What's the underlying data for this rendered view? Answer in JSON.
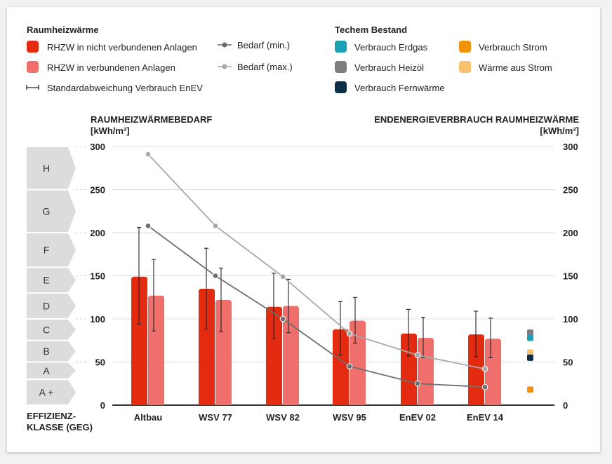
{
  "legend": {
    "group1_title": "Raumheizwärme",
    "group2_title": "Techem Bestand",
    "items1": [
      {
        "label": "RHZW in nicht verbundenen Anlagen",
        "color": "#e32b12"
      },
      {
        "label": "RHZW in verbundenen Anlagen",
        "color": "#ef6f6c"
      },
      {
        "label": "Standardabweichung Verbrauch EnEV",
        "color": "#222222"
      }
    ],
    "lines": [
      {
        "label": "Bedarf (min.)",
        "color": "#6e6e6e"
      },
      {
        "label": "Bedarf (max.)",
        "color": "#a8a8a8"
      }
    ],
    "items2": [
      {
        "label": "Verbrauch Erdgas",
        "color": "#1ba0b5"
      },
      {
        "label": "Verbrauch Heizöl",
        "color": "#7d7d7d"
      },
      {
        "label": "Verbrauch Fernwärme",
        "color": "#0d2e45"
      },
      {
        "label": "Verbrauch Strom",
        "color": "#f0930a"
      },
      {
        "label": "Wärme aus Strom",
        "color": "#f9c070"
      }
    ]
  },
  "chart_data": {
    "type": "bar",
    "ylabel_left": "RAUMHEIZWÄRMEBEDARF",
    "unit_left": "[kWh/m²]",
    "ylabel_right": "ENDENERGIEVERBRAUCH RAUMHEIZWÄRME",
    "unit_right": "[kWh/m²]",
    "xlabel": "EFFIZIENZ-",
    "xlabel2": "KLASSE (GEG)",
    "ylim": [
      0,
      300
    ],
    "yticks": [
      "0",
      "50",
      "100",
      "150",
      "200",
      "250",
      "300"
    ],
    "grid": true,
    "categories": [
      "Altbau",
      "WSV 77",
      "WSV 82",
      "WSV 95",
      "EnEV 02",
      "EnEV 14"
    ],
    "series": [
      {
        "name": "RHZW in nicht verbundenen Anlagen",
        "values": [
          149,
          135,
          114,
          88,
          83,
          82
        ],
        "err_low": [
          94,
          88,
          77,
          58,
          57,
          56
        ],
        "err_high": [
          206,
          182,
          153,
          120,
          111,
          109
        ]
      },
      {
        "name": "RHZW in verbundenen Anlagen",
        "values": [
          127,
          122,
          115,
          98,
          78,
          77
        ],
        "err_low": [
          86,
          85,
          84,
          72,
          55,
          55
        ],
        "err_high": [
          169,
          159,
          146,
          125,
          102,
          101
        ]
      }
    ],
    "lines": [
      {
        "name": "Bedarf (min.)",
        "values": [
          208,
          150,
          100,
          45,
          25,
          21
        ]
      },
      {
        "name": "Bedarf (max.)",
        "values": [
          291,
          208,
          149,
          83,
          58,
          42
        ]
      }
    ],
    "markers": [
      {
        "name": "Verbrauch Heizöl",
        "value": 84
      },
      {
        "name": "Verbrauch Erdgas",
        "value": 78
      },
      {
        "name": "Wärme aus Strom",
        "value": 61
      },
      {
        "name": "Verbrauch Fernwärme",
        "value": 55
      },
      {
        "name": "Verbrauch Strom",
        "value": 18
      }
    ],
    "efficiency_classes": [
      {
        "label": "H",
        "from": 250,
        "to": 300
      },
      {
        "label": "G",
        "from": 200,
        "to": 250
      },
      {
        "label": "F",
        "from": 160,
        "to": 200
      },
      {
        "label": "E",
        "from": 130,
        "to": 160
      },
      {
        "label": "D",
        "from": 100,
        "to": 130
      },
      {
        "label": "C",
        "from": 75,
        "to": 100
      },
      {
        "label": "B",
        "from": 50,
        "to": 75
      },
      {
        "label": "A",
        "from": 30,
        "to": 50
      },
      {
        "label": "A +",
        "from": 0,
        "to": 30
      }
    ]
  }
}
